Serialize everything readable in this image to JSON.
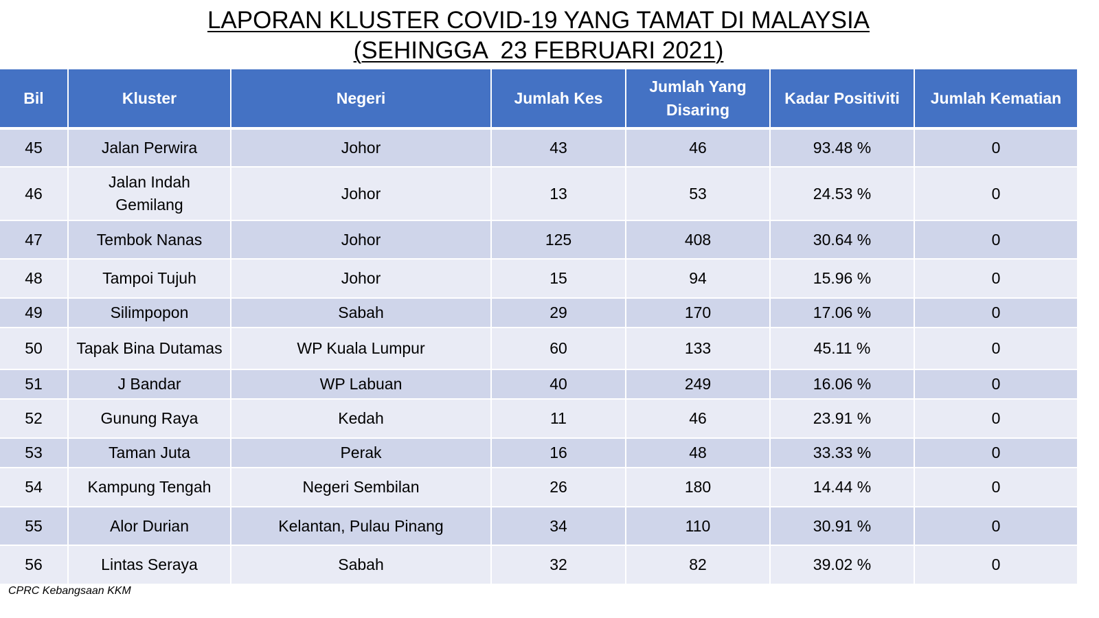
{
  "title": {
    "line1": "LAPORAN KLUSTER COVID-19 YANG TAMAT DI MALAYSIA",
    "line2": "(SEHINGGA  23 FEBRUARI 2021)"
  },
  "table": {
    "headers": [
      "Bil",
      "Kluster",
      "Negeri",
      "Jumlah Kes",
      "Jumlah Yang Disaring",
      "Kadar Positiviti",
      "Jumlah Kematian"
    ],
    "rows": [
      [
        "45",
        "Jalan Perwira",
        "Johor",
        "43",
        "46",
        "93.48 %",
        "0"
      ],
      [
        "46",
        "Jalan Indah Gemilang",
        "Johor",
        "13",
        "53",
        "24.53 %",
        "0"
      ],
      [
        "47",
        "Tembok Nanas",
        "Johor",
        "125",
        "408",
        "30.64 %",
        "0"
      ],
      [
        "48",
        "Tampoi Tujuh",
        "Johor",
        "15",
        "94",
        "15.96 %",
        "0"
      ],
      [
        "49",
        "Silimpopon",
        "Sabah",
        "29",
        "170",
        "17.06 %",
        "0"
      ],
      [
        "50",
        "Tapak Bina Dutamas",
        "WP Kuala Lumpur",
        "60",
        "133",
        "45.11 %",
        "0"
      ],
      [
        "51",
        "J Bandar",
        "WP Labuan",
        "40",
        "249",
        "16.06 %",
        "0"
      ],
      [
        "52",
        "Gunung Raya",
        "Kedah",
        "11",
        "46",
        "23.91 %",
        "0"
      ],
      [
        "53",
        "Taman Juta",
        "Perak",
        "16",
        "48",
        "33.33 %",
        "0"
      ],
      [
        "54",
        "Kampung Tengah",
        "Negeri Sembilan",
        "26",
        "180",
        "14.44 %",
        "0"
      ],
      [
        "55",
        "Alor Durian",
        "Kelantan, Pulau Pinang",
        "34",
        "110",
        "30.91 %",
        "0"
      ],
      [
        "56",
        "Lintas Seraya",
        "Sabah",
        "32",
        "82",
        "39.02 %",
        "0"
      ]
    ]
  },
  "source": "CPRC Kebangsaan KKM",
  "colors": {
    "header_bg": "#4472c4",
    "row_odd": "#cfd5ea",
    "row_even": "#e9ebf5"
  }
}
